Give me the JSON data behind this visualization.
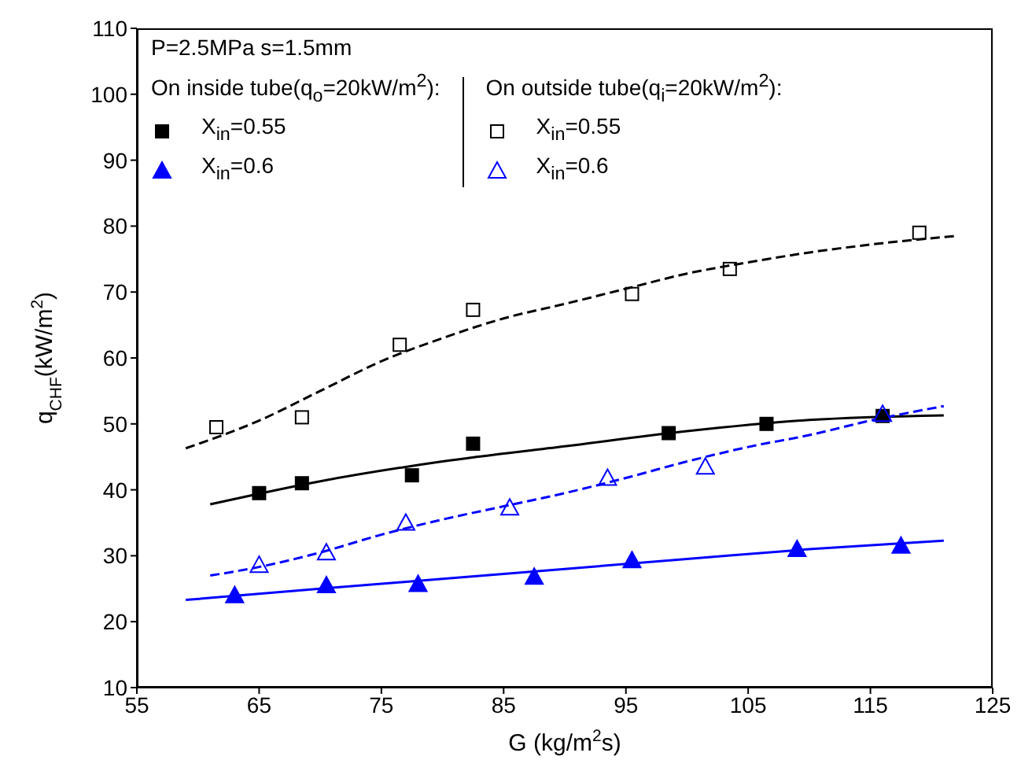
{
  "chart_data": {
    "type": "scatter",
    "xlabel": "G (kg/m$^{2}$s)",
    "ylabel": "q$_{CHF}$(kW/m$^{2}$)",
    "xlim": [
      55,
      125
    ],
    "xticks": [
      55,
      65,
      75,
      85,
      95,
      105,
      115,
      125
    ],
    "ylim": [
      10,
      110
    ],
    "yticks": [
      10,
      20,
      30,
      40,
      50,
      60,
      70,
      80,
      90,
      100,
      110
    ],
    "grid": false,
    "legend": "top left",
    "annotations": [
      "P=2.5MPa  s=1.5mm",
      "On inside tube(q$_{o}$=20kW/m$^{2}$):",
      "On outside tube(q$_{i}$=20kW/m$^{2}$):"
    ],
    "series": [
      {
        "name": "X$_{in}$=0.55",
        "marker": "square",
        "color": "#000000",
        "x": [
          65,
          68.5,
          77.5,
          82.5,
          98.5,
          106.5,
          116
        ],
        "values": [
          39.5,
          41,
          42.2,
          47,
          48.6,
          50,
          51.2
        ]
      },
      {
        "name": "X$_{in}$=0.6",
        "marker": "triangle",
        "color": "#0000ff",
        "x": [
          63,
          70.5,
          78,
          87.5,
          95.5,
          109,
          117.5
        ],
        "values": [
          24,
          25.5,
          25.7,
          26.8,
          29.3,
          31,
          31.5
        ]
      },
      {
        "name": "X$_{in}$=0.55",
        "marker": "square",
        "color": "#000000",
        "x": [
          61.5,
          68.5,
          76.5,
          82.5,
          95.5,
          103.5,
          119
        ],
        "values": [
          49.5,
          51,
          62,
          67.3,
          69.7,
          73.5,
          79
        ]
      },
      {
        "name": "X$_{in}$=0.6",
        "marker": "triangle",
        "color": "#0000ff",
        "x": [
          65,
          70.5,
          77,
          85.5,
          93.5,
          101.5,
          116
        ],
        "values": [
          28.6,
          30.5,
          35,
          37.3,
          41.8,
          43.5,
          51.5
        ]
      },
      {
        "type": "line",
        "line_style": "solid",
        "color": "#000000",
        "x": [
          61,
          70,
          80,
          90,
          100,
          110,
          121
        ],
        "values": [
          37.8,
          41.3,
          44.3,
          46.6,
          48.9,
          50.6,
          51.3
        ]
      },
      {
        "type": "line",
        "line_style": "solid",
        "color": "#0000ff",
        "x": [
          59,
          70,
          80,
          90,
          100,
          110,
          121
        ],
        "values": [
          23.3,
          25,
          26.5,
          28,
          29.5,
          31,
          32.3
        ]
      },
      {
        "type": "line",
        "line_style": "dashed",
        "color": "#000000",
        "x": [
          59,
          65,
          70,
          75,
          80,
          85,
          90,
          95,
          100,
          105,
          110,
          115,
          122
        ],
        "values": [
          46.3,
          50.5,
          55,
          59.5,
          63,
          66,
          68.2,
          70.5,
          72.8,
          74.5,
          76,
          77.2,
          78.5
        ]
      },
      {
        "type": "line",
        "line_style": "dashed",
        "color": "#0000ff",
        "x": [
          61,
          65,
          70,
          75,
          80,
          85,
          90,
          95,
          100,
          105,
          110,
          115,
          121
        ],
        "values": [
          27,
          28.3,
          30.5,
          33.2,
          35.5,
          37.5,
          39.5,
          41.8,
          44.3,
          46.5,
          48.3,
          50.5,
          52.7
        ]
      }
    ]
  }
}
